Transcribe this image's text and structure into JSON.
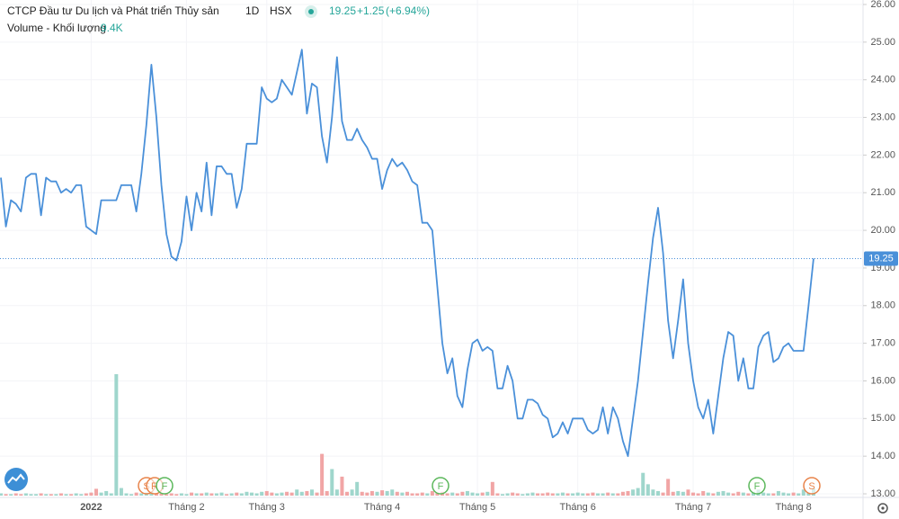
{
  "header": {
    "title": "CTCP Đầu tư Du lịch và Phát triển Thủy sản",
    "interval": "1D",
    "exchange": "HSX",
    "change": "+1.25",
    "change_percent": "(+6.94%)",
    "volume_title": "Volume - Khối lượng",
    "volume_last": "9.4K"
  },
  "events": [
    "S",
    "R",
    "F",
    "F",
    "F",
    "S"
  ],
  "chart_data": {
    "type": "line",
    "categories": [
      null,
      null,
      null,
      null,
      null,
      null,
      null,
      null,
      null,
      null,
      null,
      null,
      null,
      null,
      null,
      null,
      null,
      null,
      "2022",
      null,
      null,
      null,
      null,
      null,
      null,
      null,
      null,
      null,
      null,
      null,
      null,
      null,
      null,
      null,
      null,
      null,
      null,
      "Tháng 2",
      null,
      null,
      null,
      null,
      null,
      null,
      null,
      null,
      null,
      null,
      null,
      null,
      null,
      null,
      null,
      "Tháng 3",
      null,
      null,
      null,
      null,
      null,
      null,
      null,
      null,
      null,
      null,
      null,
      null,
      null,
      null,
      null,
      null,
      null,
      null,
      null,
      null,
      null,
      null,
      "Tháng 4",
      null,
      null,
      null,
      null,
      null,
      null,
      null,
      null,
      null,
      null,
      null,
      null,
      null,
      null,
      null,
      null,
      null,
      null,
      "Tháng 5",
      null,
      null,
      null,
      null,
      null,
      null,
      null,
      null,
      null,
      null,
      null,
      null,
      null,
      null,
      null,
      null,
      null,
      null,
      null,
      "Tháng 6",
      null,
      null,
      null,
      null,
      null,
      null,
      null,
      null,
      null,
      null,
      null,
      null,
      null,
      null,
      null,
      null,
      null,
      null,
      null,
      null,
      null,
      null,
      "Tháng 7",
      null,
      null,
      null,
      null,
      null,
      null,
      null,
      null,
      null,
      null,
      null,
      null,
      null,
      null,
      null,
      null,
      null,
      null,
      null,
      "Tháng 8",
      null,
      null,
      null,
      null
    ],
    "series": [
      {
        "name": "Giá",
        "color": "#4a90d9",
        "values": [
          21.4,
          20.1,
          20.8,
          20.7,
          20.5,
          21.4,
          21.5,
          21.5,
          20.4,
          21.4,
          21.3,
          21.3,
          21.0,
          21.1,
          21.0,
          21.2,
          21.2,
          20.1,
          20.0,
          19.9,
          20.8,
          20.8,
          20.8,
          20.8,
          21.2,
          21.2,
          21.2,
          20.5,
          21.5,
          22.8,
          24.4,
          23.0,
          21.2,
          19.9,
          19.3,
          19.2,
          19.7,
          20.9,
          20.0,
          21.0,
          20.5,
          21.8,
          20.4,
          21.7,
          21.7,
          21.5,
          21.5,
          20.6,
          21.1,
          22.3,
          22.3,
          22.3,
          23.8,
          23.5,
          23.4,
          23.5,
          24.0,
          23.8,
          23.6,
          24.2,
          24.8,
          23.1,
          23.9,
          23.8,
          22.5,
          21.8,
          23.0,
          24.6,
          22.9,
          22.4,
          22.4,
          22.7,
          22.4,
          22.2,
          21.9,
          21.9,
          21.1,
          21.6,
          21.9,
          21.7,
          21.8,
          21.6,
          21.3,
          21.2,
          20.2,
          20.2,
          20.0,
          18.5,
          17.0,
          16.2,
          16.6,
          15.6,
          15.3,
          16.3,
          17.0,
          17.1,
          16.8,
          16.9,
          16.8,
          15.8,
          15.8,
          16.4,
          16.0,
          15.0,
          15.0,
          15.5,
          15.5,
          15.4,
          15.1,
          15.0,
          14.5,
          14.6,
          14.9,
          14.6,
          15.0,
          15.0,
          15.0,
          14.7,
          14.6,
          14.7,
          15.3,
          14.6,
          15.3,
          15.0,
          14.4,
          14.0,
          15.0,
          16.0,
          17.3,
          18.6,
          19.8,
          20.6,
          19.4,
          17.6,
          16.6,
          17.6,
          18.7,
          17.0,
          16.0,
          15.3,
          15.0,
          15.5,
          14.6,
          15.6,
          16.6,
          17.3,
          17.2,
          16.0,
          16.6,
          15.8,
          15.8,
          16.9,
          17.2,
          17.3,
          16.5,
          16.6,
          16.9,
          17.0,
          16.8,
          16.8,
          16.8,
          18.0,
          19.25
        ]
      },
      {
        "name": "Volume",
        "up_color": "#9fd6cc",
        "down_color": "#f1a5a5",
        "values": [
          3,
          2,
          2,
          3,
          2,
          3,
          2,
          2,
          3,
          2,
          2,
          2,
          3,
          2,
          2,
          3,
          2,
          3,
          4,
          9,
          4,
          6,
          3,
          160,
          10,
          3,
          2,
          4,
          3,
          4,
          5,
          3,
          3,
          2,
          3,
          2,
          3,
          2,
          4,
          3,
          3,
          4,
          3,
          3,
          4,
          2,
          3,
          4,
          3,
          5,
          4,
          3,
          5,
          6,
          4,
          3,
          4,
          5,
          4,
          8,
          5,
          6,
          8,
          4,
          55,
          6,
          35,
          8,
          25,
          5,
          8,
          18,
          5,
          4,
          6,
          5,
          7,
          6,
          8,
          5,
          4,
          5,
          3,
          3,
          4,
          3,
          6,
          4,
          5,
          3,
          4,
          3,
          5,
          6,
          4,
          3,
          4,
          5,
          18,
          3,
          2,
          3,
          4,
          3,
          2,
          3,
          4,
          3,
          3,
          4,
          3,
          3,
          4,
          3,
          3,
          4,
          3,
          3,
          4,
          3,
          3,
          4,
          3,
          3,
          5,
          6,
          8,
          10,
          30,
          15,
          8,
          6,
          4,
          22,
          5,
          6,
          5,
          8,
          4,
          3,
          6,
          4,
          3,
          5,
          6,
          4,
          3,
          5,
          4,
          3,
          5,
          8,
          4,
          3,
          3,
          6,
          4,
          3,
          4,
          3,
          8,
          4,
          9.4
        ]
      }
    ],
    "ylim": [
      13,
      26
    ],
    "yticks": [
      {
        "value": 13,
        "label": "13.00"
      },
      {
        "value": 14,
        "label": "14.00"
      },
      {
        "value": 15,
        "label": "15.00"
      },
      {
        "value": 16,
        "label": "16.00"
      },
      {
        "value": 17,
        "label": "17.00"
      },
      {
        "value": 18,
        "label": "18.00"
      },
      {
        "value": 19,
        "label": "19.00"
      },
      {
        "value": 20,
        "label": "20.00"
      },
      {
        "value": 21,
        "label": "21.00"
      },
      {
        "value": 22,
        "label": "22.00"
      },
      {
        "value": 23,
        "label": "23.00"
      },
      {
        "value": 24,
        "label": "24.00"
      },
      {
        "value": 25,
        "label": "25.00"
      },
      {
        "value": 26,
        "label": "26.00"
      }
    ],
    "last_line_color": "#4a90d9"
  }
}
